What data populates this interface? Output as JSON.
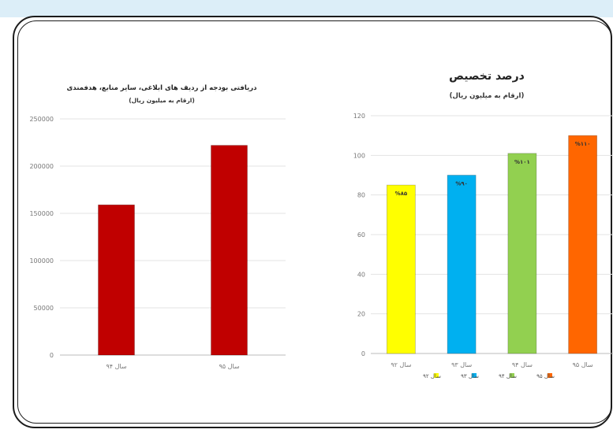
{
  "chart_data": [
    {
      "type": "bar",
      "title": "دریافتی بودجه از ردیف های ابلاغی، سایر منابع، هدفمندی",
      "subtitle": "(ارقام به میلیون ریال)",
      "categories": [
        "سال ۹۴",
        "سال ۹۵"
      ],
      "values": [
        159000,
        222000
      ],
      "ylim": [
        0,
        250000
      ],
      "yticks": [
        0,
        50000,
        100000,
        150000,
        200000,
        250000
      ],
      "colors": [
        "#c00000",
        "#c00000"
      ],
      "grid": true
    },
    {
      "type": "bar",
      "title": "درصد تخصیص",
      "subtitle": "(ارقام به میلیون ریال)",
      "categories": [
        "سال ۹۲",
        "سال ۹۳",
        "سال ۹۴",
        "سال ۹۵"
      ],
      "values": [
        85,
        90,
        101,
        110
      ],
      "data_labels": [
        "%۸۵",
        "%۹۰",
        "%۱۰۱",
        "%۱۱۰"
      ],
      "ylim": [
        0,
        120
      ],
      "yticks": [
        0,
        20,
        40,
        60,
        80,
        100,
        120
      ],
      "colors": [
        "#ffff00",
        "#00b0f0",
        "#92d050",
        "#ff6600"
      ],
      "legend": [
        "سال ۹۲",
        "سال ۹۳",
        "سال ۹۴",
        "سال ۹۵"
      ],
      "legend_position": "bottom",
      "grid": true
    }
  ]
}
